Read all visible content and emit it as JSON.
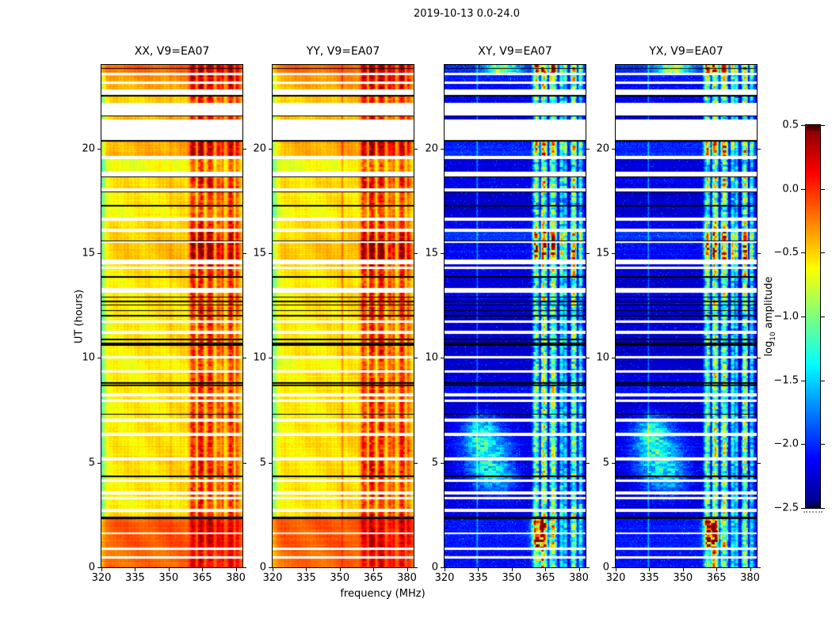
{
  "figure": {
    "title": "2019-10-13 0.0-24.0",
    "xlabel": "frequency (MHz)",
    "ylabel": "UT (hours)",
    "background_color": "#ffffff"
  },
  "chart_data": {
    "type": "heatmap",
    "title": "2019-10-13 0.0-24.0",
    "xlabel": "frequency (MHz)",
    "ylabel": "UT (hours)",
    "x_range_mhz": [
      320,
      383
    ],
    "y_range_hours": [
      0,
      24
    ],
    "x_tick_values": [
      320,
      335,
      350,
      365,
      380
    ],
    "x_tick_labels": [
      "320",
      "335",
      "350",
      "365",
      "380"
    ],
    "y_tick_values": [
      0,
      5,
      10,
      15,
      20
    ],
    "y_tick_labels": [
      "0",
      "5",
      "10",
      "15",
      "20"
    ],
    "panels": [
      {
        "id": "XX",
        "title": "XX, V9=EA07",
        "kind": "auto",
        "seed": 1
      },
      {
        "id": "YY",
        "title": "YY, V9=EA07",
        "kind": "auto",
        "seed": 2
      },
      {
        "id": "XY",
        "title": "XY, V9=EA07",
        "kind": "cross",
        "seed": 3
      },
      {
        "id": "YX",
        "title": "YX, V9=EA07",
        "kind": "cross",
        "seed": 4
      }
    ],
    "colorbar": {
      "label_log": "log",
      "label_sub": "10",
      "label_rest": " amplitude",
      "colormap": "jet",
      "value_range": [
        -2.5,
        0.5
      ],
      "tick_values": [
        0.5,
        0.0,
        -0.5,
        -1.0,
        -1.5,
        -2.0,
        -2.5
      ],
      "tick_labels": [
        "0.5",
        "0.0",
        "−0.5",
        "−1.0",
        "−1.5",
        "−2.0",
        "−2.5"
      ]
    },
    "rfi_columns": [
      [
        360.8,
        1.3,
        0.85
      ],
      [
        364.3,
        1.7,
        1.0
      ],
      [
        368.5,
        1.7,
        0.95
      ],
      [
        372.2,
        1.0,
        0.6
      ],
      [
        374.2,
        0.9,
        0.55
      ],
      [
        377.8,
        1.6,
        0.9
      ],
      [
        380.8,
        1.0,
        0.55
      ]
    ],
    "rfi_gaps": [
      [
        357.8,
        0.5,
        0.3
      ],
      [
        362.7,
        0.4,
        0.6
      ],
      [
        366.4,
        0.45,
        0.6
      ],
      [
        370.8,
        0.45,
        0.5
      ],
      [
        375.4,
        0.6,
        0.7
      ],
      [
        379.4,
        0.4,
        0.5
      ]
    ],
    "vertical_lines": {
      "auto_mhz": 351.2,
      "cross_mhz": 334.6
    },
    "diffuse_blob_lobes": [
      [
        339,
        10.5,
        5.3,
        1.35,
        1.05
      ],
      [
        336,
        7,
        6.6,
        0.7,
        0.7
      ],
      [
        345,
        9,
        4.15,
        0.8,
        0.45
      ]
    ],
    "time_bands": [
      [
        24.0,
        23.84,
        "d",
        1.3,
        0.42,
        0.3
      ],
      [
        23.84,
        23.8,
        "b"
      ],
      [
        23.8,
        23.64,
        "d",
        1.3,
        0.4,
        0.28
      ],
      [
        23.64,
        23.52,
        "w"
      ],
      [
        23.52,
        23.22,
        "d",
        1.1,
        0.25,
        0.2
      ],
      [
        23.22,
        23.08,
        "w"
      ],
      [
        23.08,
        22.82,
        "d",
        1.05,
        0.2,
        0.15
      ],
      [
        22.82,
        22.56,
        "w"
      ],
      [
        22.56,
        22.5,
        "b"
      ],
      [
        22.5,
        22.2,
        "d",
        0.95,
        0.1,
        0.1
      ],
      [
        22.2,
        21.58,
        "w"
      ],
      [
        21.58,
        21.56,
        "b"
      ],
      [
        21.56,
        21.4,
        "d",
        0.9,
        0.15,
        0.05
      ],
      [
        21.4,
        21.38,
        "b"
      ],
      [
        21.38,
        20.42,
        "w"
      ],
      [
        20.42,
        20.32,
        "b"
      ],
      [
        20.32,
        19.66,
        "d",
        1.3,
        0.18,
        0.25
      ],
      [
        19.66,
        19.52,
        "w"
      ],
      [
        19.52,
        18.88,
        "d",
        0.85,
        -0.08,
        0.05
      ],
      [
        18.88,
        18.68,
        "w"
      ],
      [
        18.68,
        18.62,
        "b"
      ],
      [
        18.62,
        18.1,
        "d",
        1.15,
        0.05,
        0.1
      ],
      [
        18.1,
        17.96,
        "w"
      ],
      [
        17.96,
        17.9,
        "b"
      ],
      [
        17.9,
        17.3,
        "d",
        0.95,
        0.0,
        0.0
      ],
      [
        17.3,
        17.24,
        "b"
      ],
      [
        17.24,
        16.7,
        "d",
        0.9,
        -0.05,
        0.0
      ],
      [
        16.7,
        16.56,
        "w"
      ],
      [
        16.56,
        16.16,
        "d",
        1.1,
        0.05,
        0.1
      ],
      [
        16.16,
        16.02,
        "w"
      ],
      [
        16.02,
        15.62,
        "d",
        1.35,
        0.08,
        0.3
      ],
      [
        15.62,
        15.56,
        "b"
      ],
      [
        15.56,
        15.5,
        "w"
      ],
      [
        15.5,
        14.72,
        "d",
        1.7,
        0.12,
        0.15
      ],
      [
        14.72,
        14.48,
        "w"
      ],
      [
        14.48,
        14.36,
        "d",
        1.2,
        0.05,
        0.05
      ],
      [
        14.36,
        14.24,
        "w"
      ],
      [
        14.24,
        13.92,
        "d",
        1.15,
        0.03,
        0.05
      ],
      [
        13.92,
        13.82,
        "b"
      ],
      [
        13.82,
        13.34,
        "d",
        1.0,
        0.0,
        0.0
      ],
      [
        13.34,
        13.12,
        "w"
      ],
      [
        13.12,
        12.94,
        "d",
        1.0,
        0.0,
        0.1
      ],
      [
        12.94,
        12.88,
        "b"
      ],
      [
        12.88,
        12.72,
        "d",
        1.05,
        0.02,
        0.05
      ],
      [
        12.72,
        12.66,
        "b"
      ],
      [
        12.66,
        12.56,
        "d",
        1.05,
        0.02,
        0.05
      ],
      [
        12.56,
        12.5,
        "b"
      ],
      [
        12.5,
        12.3,
        "d",
        1.0,
        0.0,
        0.0
      ],
      [
        12.3,
        12.24,
        "b"
      ],
      [
        12.24,
        12.06,
        "d",
        1.0,
        0.0,
        0.0
      ],
      [
        12.06,
        11.98,
        "b"
      ],
      [
        11.98,
        11.78,
        "d",
        0.95,
        0.0,
        0.0
      ],
      [
        11.78,
        11.66,
        "w"
      ],
      [
        11.66,
        11.3,
        "d",
        0.95,
        0.0,
        0.0
      ],
      [
        11.3,
        11.16,
        "w"
      ],
      [
        11.16,
        10.92,
        "d",
        1.0,
        0.02,
        0.0
      ],
      [
        10.92,
        10.86,
        "b"
      ],
      [
        10.86,
        10.72,
        "d",
        1.0,
        0.0,
        0.0
      ],
      [
        10.72,
        10.6,
        "b"
      ],
      [
        10.6,
        10.1,
        "d",
        1.0,
        0.02,
        0.0
      ],
      [
        10.1,
        9.96,
        "w"
      ],
      [
        9.96,
        9.42,
        "d",
        0.9,
        -0.05,
        0.0
      ],
      [
        9.42,
        9.28,
        "w"
      ],
      [
        9.28,
        8.84,
        "d",
        1.0,
        0.0,
        0.05
      ],
      [
        8.84,
        8.78,
        "b"
      ],
      [
        8.78,
        8.72,
        "d",
        1.0,
        0.0,
        0.0
      ],
      [
        8.72,
        8.66,
        "b"
      ],
      [
        8.66,
        8.3,
        "d",
        0.95,
        0.0,
        0.15
      ],
      [
        8.3,
        8.16,
        "w"
      ],
      [
        8.16,
        8.02,
        "d",
        0.9,
        0.0,
        0.05
      ],
      [
        8.02,
        7.9,
        "w"
      ],
      [
        7.9,
        7.34,
        "d",
        1.0,
        0.0,
        0.0
      ],
      [
        7.34,
        7.28,
        "b"
      ],
      [
        7.28,
        7.1,
        "d",
        1.0,
        0.0,
        0.0
      ],
      [
        7.1,
        6.96,
        "w"
      ],
      [
        6.96,
        6.42,
        "d",
        1.0,
        0.0,
        0.05
      ],
      [
        6.42,
        6.28,
        "w"
      ],
      [
        6.28,
        5.26,
        "d",
        1.0,
        0.02,
        0.05
      ],
      [
        5.26,
        5.12,
        "w"
      ],
      [
        5.12,
        4.38,
        "d",
        1.05,
        0.02,
        0.0
      ],
      [
        4.38,
        4.32,
        "b"
      ],
      [
        4.32,
        4.2,
        "d",
        1.0,
        0.0,
        0.0
      ],
      [
        4.2,
        4.08,
        "w"
      ],
      [
        4.08,
        3.62,
        "d",
        0.95,
        0.0,
        0.0
      ],
      [
        3.62,
        3.48,
        "w"
      ],
      [
        3.48,
        3.38,
        "d",
        1.0,
        0.0,
        0.0
      ],
      [
        3.38,
        3.26,
        "w"
      ],
      [
        3.26,
        2.78,
        "d",
        1.0,
        0.0,
        0.05
      ],
      [
        2.78,
        2.64,
        "w"
      ],
      [
        2.64,
        2.42,
        "d",
        1.05,
        0.05,
        0.05
      ],
      [
        2.42,
        2.3,
        "b"
      ],
      [
        2.3,
        1.66,
        "d",
        0.85,
        0.45,
        0.2
      ],
      [
        1.66,
        1.58,
        "w"
      ],
      [
        1.58,
        0.94,
        "d",
        0.85,
        0.45,
        0.2
      ],
      [
        0.94,
        0.82,
        "w"
      ],
      [
        0.82,
        0.54,
        "d",
        0.8,
        0.4,
        0.15
      ],
      [
        0.54,
        0.42,
        "w"
      ],
      [
        0.42,
        0.0,
        "d",
        0.8,
        0.4,
        0.15
      ]
    ]
  }
}
